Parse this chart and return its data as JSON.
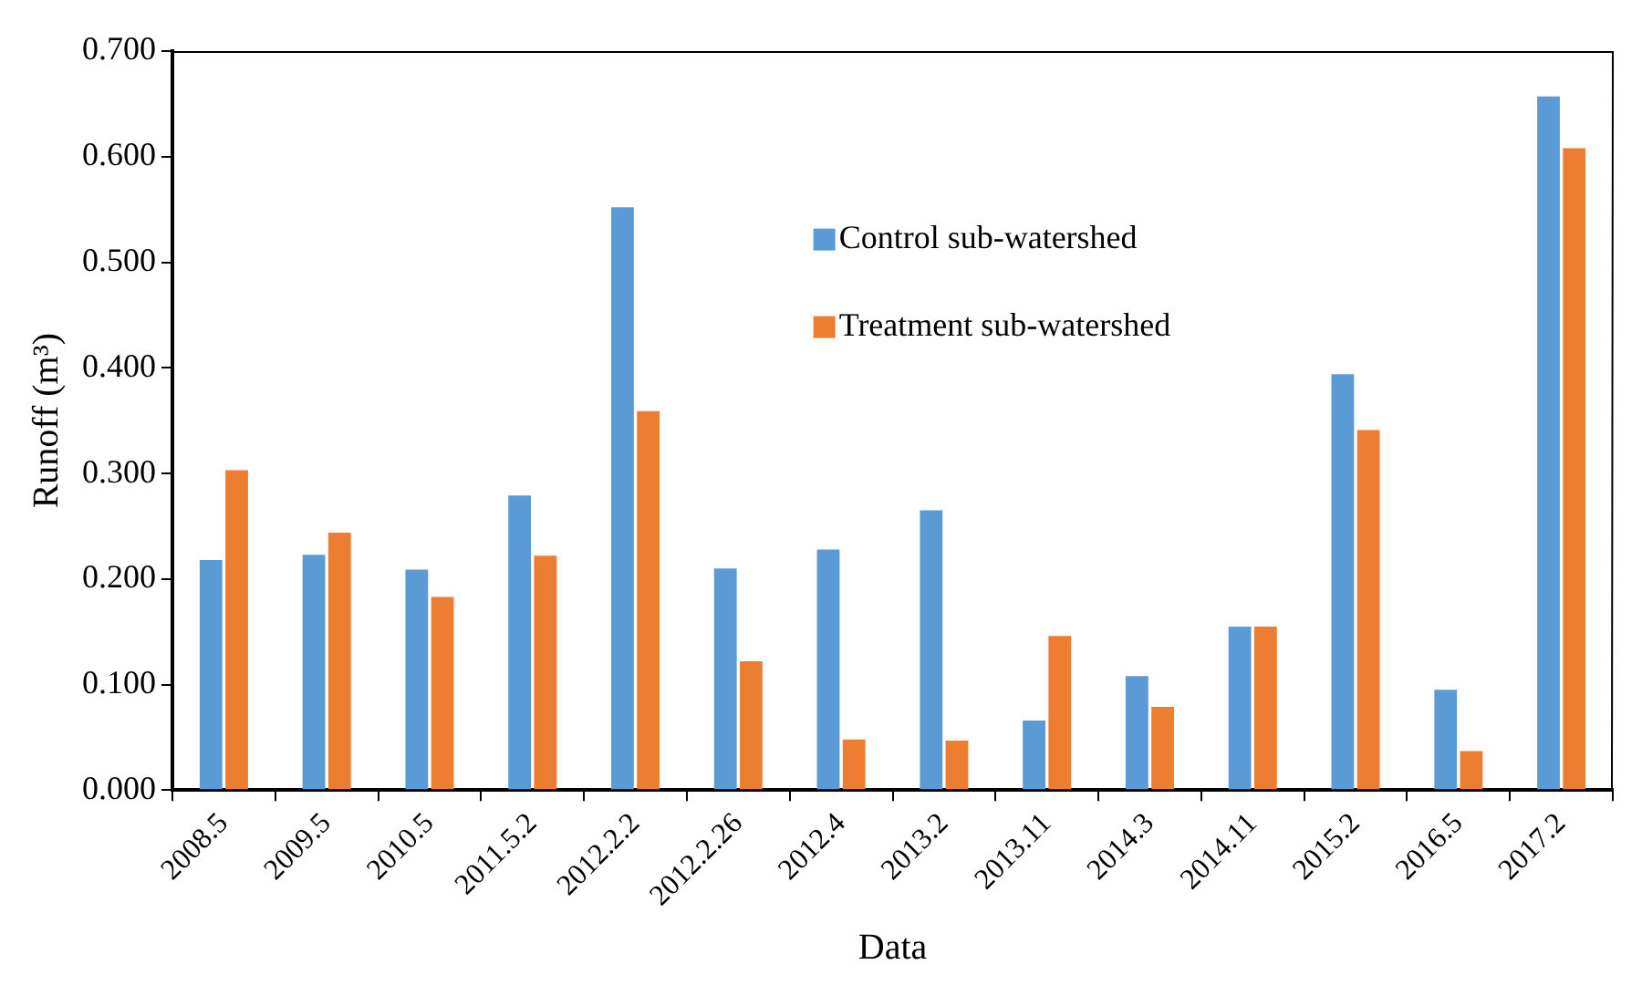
{
  "chart_data": {
    "type": "bar",
    "xlabel": "Data",
    "ylabel": "Runoff (m³)",
    "categories": [
      "2008.5",
      "2009.5",
      "2010.5",
      "2011.5.2",
      "2012.2.2",
      "2012.2.26",
      "2012.4",
      "2013.2",
      "2013.11",
      "2014.3",
      "2014.11",
      "2015.2",
      "2016.5",
      "2017.2"
    ],
    "series": [
      {
        "name": "Control sub-watershed",
        "color": "#5b9bd5",
        "values": [
          0.218,
          0.223,
          0.209,
          0.279,
          0.552,
          0.21,
          0.228,
          0.265,
          0.066,
          0.108,
          0.155,
          0.394,
          0.095,
          0.657
        ]
      },
      {
        "name": "Treatment sub-watershed",
        "color": "#ed7d31",
        "values": [
          0.303,
          0.244,
          0.183,
          0.222,
          0.359,
          0.122,
          0.048,
          0.047,
          0.146,
          0.079,
          0.155,
          0.341,
          0.037,
          0.608
        ]
      }
    ],
    "ylim": [
      0,
      0.7
    ],
    "yticks": [
      {
        "value": 0,
        "label": "0.000"
      },
      {
        "value": 0.1,
        "label": "0.100"
      },
      {
        "value": 0.2,
        "label": "0.200"
      },
      {
        "value": 0.3,
        "label": "0.300"
      },
      {
        "value": 0.4,
        "label": "0.400"
      },
      {
        "value": 0.5,
        "label": "0.500"
      },
      {
        "value": 0.6,
        "label": "0.600"
      },
      {
        "value": 0.7,
        "label": "0.700"
      }
    ],
    "grid": false,
    "legend": "top right"
  }
}
